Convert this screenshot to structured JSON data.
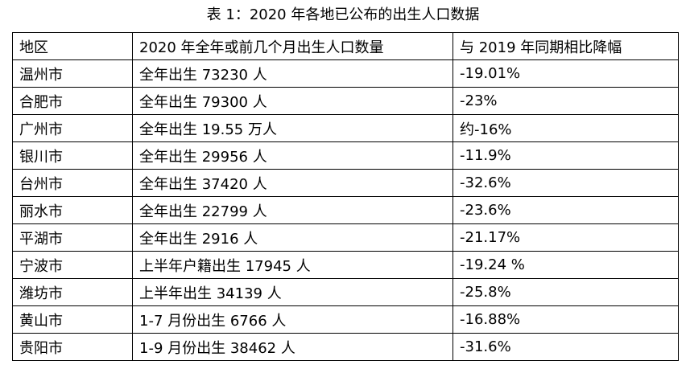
{
  "caption": "表 1：2020 年各地已公布的出生人口数据",
  "columns": [
    "地区",
    "2020 年全年或前几个月出生人口数量",
    "与 2019 年同期相比降幅"
  ],
  "rows": [
    [
      "温州市",
      "全年出生 73230 人",
      "-19.01%"
    ],
    [
      "合肥市",
      "全年出生 79300 人",
      "-23%"
    ],
    [
      "广州市",
      "全年出生 19.55 万人",
      "约-16%"
    ],
    [
      "银川市",
      "全年出生 29956 人",
      "-11.9%"
    ],
    [
      "台州市",
      "全年出生 37420 人",
      "-32.6%"
    ],
    [
      "丽水市",
      "全年出生 22799 人",
      "-23.6%"
    ],
    [
      "平湖市",
      "全年出生 2916 人",
      "-21.17%"
    ],
    [
      "宁波市",
      "上半年户籍出生 17945 人",
      "-19.24 %"
    ],
    [
      "潍坊市",
      "上半年出生 34139 人",
      "-25.8%"
    ],
    [
      "黄山市",
      "1-7 月份出生 6766 人",
      "-16.88%"
    ],
    [
      "贵阳市",
      "1-9 月份出生 38462 人",
      "-31.6%"
    ]
  ]
}
